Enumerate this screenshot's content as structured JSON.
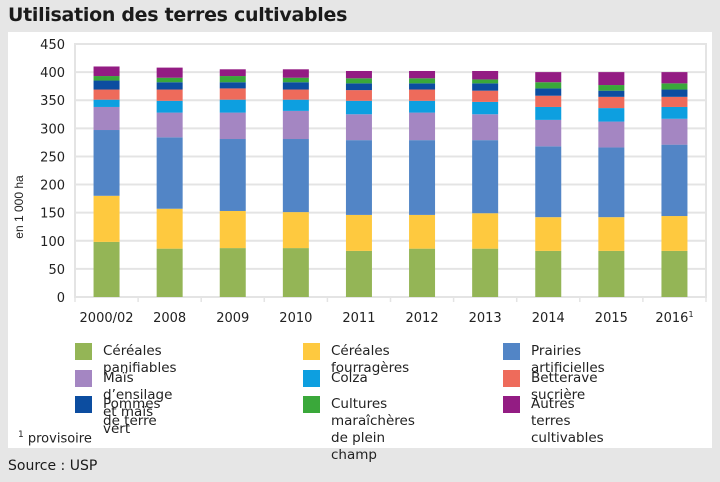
{
  "title": "Utilisation des terres cultivables",
  "footnote": {
    "mark": "1",
    "text": "provisoire"
  },
  "source": "Source : USP",
  "chart_data": {
    "type": "bar",
    "stacked": true,
    "title": "Utilisation des terres cultivables",
    "xlabel": "",
    "ylabel": "en 1 000 ha",
    "ylim": [
      0,
      450
    ],
    "yticks": [
      0,
      50,
      100,
      150,
      200,
      250,
      300,
      350,
      400,
      450
    ],
    "grid": true,
    "legend_position": "bottom",
    "categories": [
      "2000/02",
      "2008",
      "2009",
      "2010",
      "2011",
      "2012",
      "2013",
      "2014",
      "2015",
      "2016"
    ],
    "category_superscripts": {
      "2016": "1"
    },
    "series": [
      {
        "name": "Céréales panifiables",
        "color": "#94b556",
        "values": [
          98,
          86,
          87,
          87,
          82,
          86,
          86,
          82,
          82,
          82
        ]
      },
      {
        "name": "Céréales fourragères",
        "color": "#fec93f",
        "values": [
          82,
          71,
          66,
          64,
          64,
          60,
          63,
          60,
          60,
          62
        ]
      },
      {
        "name": "Prairies artificielles",
        "color": "#5285c6",
        "values": [
          117,
          127,
          128,
          130,
          133,
          133,
          130,
          126,
          124,
          127
        ]
      },
      {
        "name": "Maïs d’ensilage et maïs vert",
        "color": "#a486c2",
        "values": [
          41,
          44,
          47,
          50,
          46,
          49,
          46,
          47,
          46,
          46
        ]
      },
      {
        "name": "Colza",
        "color": "#0d9fe0",
        "values": [
          13,
          21,
          23,
          20,
          24,
          21,
          22,
          23,
          24,
          21
        ]
      },
      {
        "name": "Betterave sucrière",
        "color": "#ee6b5b",
        "values": [
          18,
          20,
          20,
          18,
          19,
          20,
          20,
          20,
          20,
          18
        ]
      },
      {
        "name": "Pommes de terre",
        "color": "#0c4da0",
        "values": [
          16,
          13,
          11,
          13,
          12,
          11,
          13,
          13,
          11,
          13
        ]
      },
      {
        "name": "Cultures maraîchères\nde plein champ",
        "color": "#3aa83a",
        "values": [
          8,
          8,
          11,
          8,
          9,
          9,
          7,
          11,
          10,
          11
        ]
      },
      {
        "name": "Autres terres cultivables",
        "color": "#931c83",
        "values": [
          17,
          18,
          12,
          15,
          13,
          13,
          15,
          18,
          23,
          20
        ]
      }
    ]
  }
}
